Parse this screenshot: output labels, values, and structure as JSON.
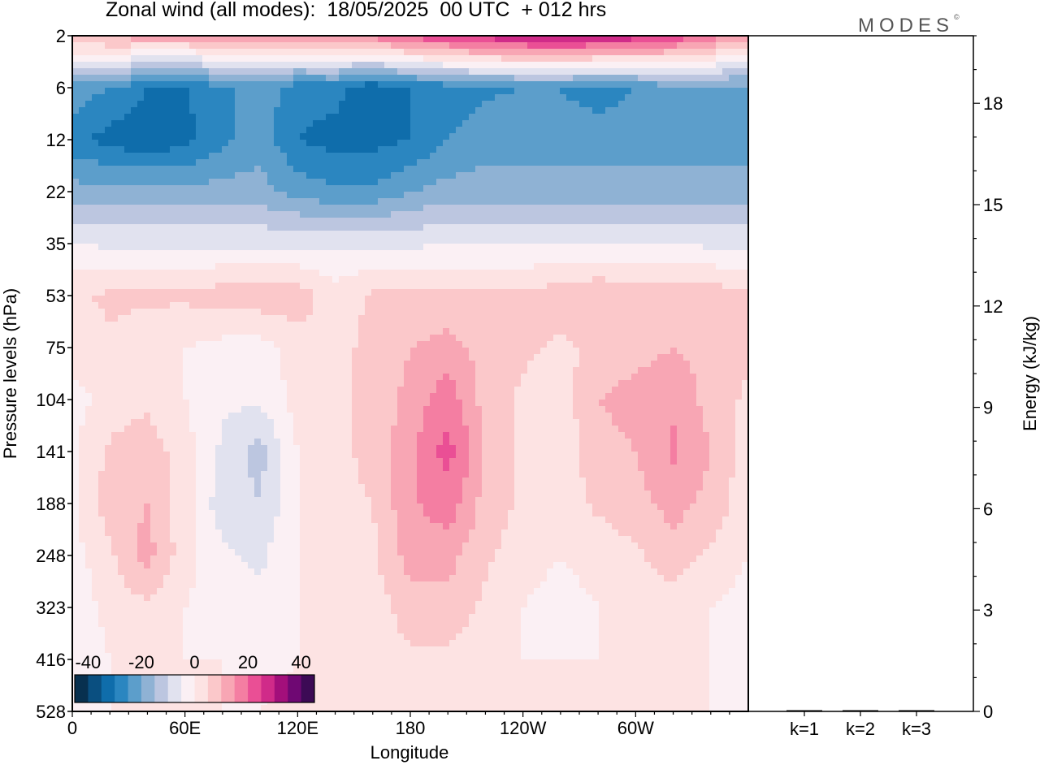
{
  "title": "Zonal wind (all modes):  18/05/2025  00 UTC  + 012 hrs",
  "logo": "MODES",
  "chart_data": [
    {
      "type": "heatmap",
      "title": "Zonal wind (all modes):  18/05/2025  00 UTC  + 012 hrs",
      "xlabel": "Longitude",
      "ylabel": "Pressure levels (hPa)",
      "x_ticks": [
        "0",
        "60E",
        "120E",
        "180",
        "120W",
        "60W"
      ],
      "y_ticks": [
        "2",
        "6",
        "12",
        "22",
        "35",
        "53",
        "75",
        "104",
        "141",
        "188",
        "248",
        "323",
        "416",
        "528"
      ],
      "colorbar": {
        "tick_labels": [
          "-40",
          "-20",
          "0",
          "20",
          "40"
        ],
        "range": [
          -45,
          45
        ],
        "step": 5,
        "colors": [
          "#08304f",
          "#0a4f80",
          "#0f6dab",
          "#2b86c0",
          "#5c9ecb",
          "#8fb2d4",
          "#bcc6e0",
          "#e1e2ef",
          "#fbf0f4",
          "#fde3e3",
          "#fbc8ca",
          "#f8a6b4",
          "#f47ea2",
          "#ea4f95",
          "#d02b89",
          "#a30f7b",
          "#6f0873",
          "#3c0a55"
        ]
      },
      "lon_centers": [
        0,
        20,
        40,
        60,
        80,
        100,
        120,
        140,
        160,
        180,
        200,
        220,
        240,
        260,
        280,
        300,
        320,
        340,
        360
      ],
      "levels": [
        "2",
        "6",
        "12",
        "22",
        "35",
        "53",
        "75",
        "104",
        "141",
        "188",
        "248",
        "323",
        "416",
        "528"
      ],
      "values": [
        [
          10,
          12,
          13,
          13,
          13,
          13,
          13,
          15,
          18,
          22,
          25,
          28,
          30,
          32,
          30,
          28,
          24,
          18,
          12
        ],
        [
          -22,
          -25,
          -30,
          -30,
          -26,
          -22,
          -28,
          -28,
          -34,
          -30,
          -28,
          -26,
          -25,
          -25,
          -28,
          -25,
          -22,
          -22,
          -22
        ],
        [
          -28,
          -32,
          -34,
          -32,
          -26,
          -22,
          -30,
          -32,
          -32,
          -30,
          -25,
          -22,
          -22,
          -22,
          -22,
          -22,
          -22,
          -22,
          -22
        ],
        [
          -18,
          -18,
          -18,
          -18,
          -18,
          -18,
          -22,
          -24,
          -24,
          -20,
          -18,
          -18,
          -18,
          -18,
          -18,
          -18,
          -18,
          -18,
          -18
        ],
        [
          -5,
          -6,
          -6,
          -6,
          -6,
          -6,
          -6,
          -6,
          -6,
          -6,
          -5,
          -5,
          -5,
          -5,
          -5,
          -5,
          -5,
          -6,
          -6
        ],
        [
          4,
          6,
          6,
          6,
          8,
          8,
          8,
          2,
          6,
          6,
          6,
          6,
          6,
          8,
          10,
          8,
          8,
          8,
          6
        ],
        [
          2,
          4,
          2,
          0,
          -2,
          -2,
          2,
          4,
          6,
          10,
          12,
          8,
          6,
          4,
          6,
          8,
          10,
          8,
          6
        ],
        [
          -2,
          2,
          4,
          0,
          -4,
          -4,
          2,
          4,
          6,
          12,
          18,
          8,
          4,
          2,
          10,
          12,
          14,
          8,
          4
        ],
        [
          -1,
          6,
          8,
          2,
          -6,
          -12,
          0,
          4,
          6,
          14,
          22,
          10,
          4,
          2,
          8,
          10,
          16,
          10,
          2
        ],
        [
          -1,
          8,
          10,
          2,
          -8,
          -10,
          0,
          4,
          5,
          14,
          18,
          8,
          4,
          2,
          6,
          8,
          12,
          8,
          2
        ],
        [
          -2,
          4,
          12,
          2,
          -4,
          -6,
          0,
          2,
          4,
          12,
          12,
          6,
          2,
          0,
          2,
          4,
          8,
          4,
          0
        ],
        [
          -4,
          2,
          4,
          0,
          -2,
          -4,
          0,
          2,
          2,
          8,
          8,
          4,
          0,
          -2,
          0,
          2,
          2,
          0,
          -2
        ],
        [
          -4,
          0,
          2,
          0,
          0,
          -2,
          0,
          2,
          2,
          4,
          4,
          2,
          0,
          0,
          0,
          2,
          2,
          0,
          -2
        ],
        [
          -2,
          0,
          0,
          0,
          0,
          0,
          2,
          2,
          2,
          2,
          2,
          2,
          0,
          0,
          0,
          2,
          2,
          0,
          -2
        ]
      ]
    },
    {
      "type": "bar",
      "categories": [
        "k=1",
        "k=2",
        "k=3"
      ],
      "values": [
        0.02,
        0.015,
        0.01
      ],
      "ylabel": "Energy (kJ/kg)",
      "ylim": [
        0,
        20
      ],
      "y_ticks": [
        "0",
        "3",
        "6",
        "9",
        "12",
        "15",
        "18"
      ]
    }
  ]
}
